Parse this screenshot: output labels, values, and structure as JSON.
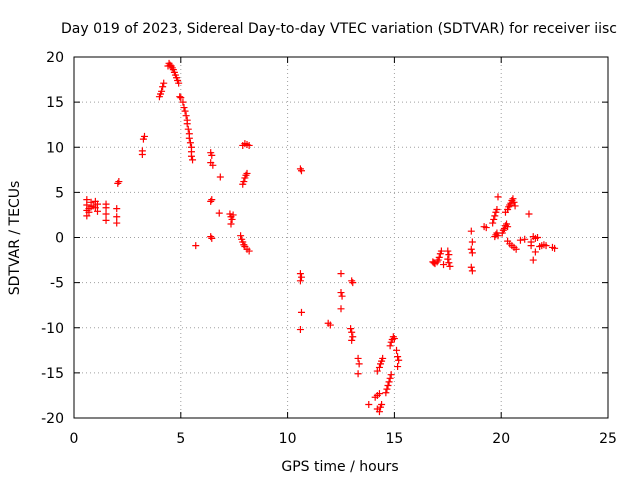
{
  "chart_data": {
    "type": "scatter",
    "title": "Day 019 of 2023, Sidereal Day-to-day VTEC variation (SDTVAR) for receiver iisc",
    "xlabel": "GPS time / hours",
    "ylabel": "SDTVAR / TECUs",
    "xlim": [
      0,
      25
    ],
    "ylim": [
      -20,
      20
    ],
    "xticks": [
      0,
      5,
      10,
      15,
      20,
      25
    ],
    "yticks": [
      -20,
      -15,
      -10,
      -5,
      0,
      5,
      10,
      15,
      20
    ],
    "grid": true,
    "marker": "+",
    "series_color": "#ff0000",
    "points": [
      [
        0.6,
        2.4
      ],
      [
        0.6,
        3.0
      ],
      [
        0.6,
        3.6
      ],
      [
        0.6,
        4.2
      ],
      [
        0.7,
        3.2
      ],
      [
        0.7,
        2.8
      ],
      [
        0.8,
        3.4
      ],
      [
        0.8,
        3.9
      ],
      [
        0.9,
        3.5
      ],
      [
        1.0,
        3.3
      ],
      [
        1.0,
        4.0
      ],
      [
        1.1,
        3.7
      ],
      [
        1.1,
        2.9
      ],
      [
        1.5,
        3.7
      ],
      [
        1.5,
        3.3
      ],
      [
        1.5,
        2.6
      ],
      [
        1.5,
        1.9
      ],
      [
        2.0,
        3.2
      ],
      [
        2.0,
        2.3
      ],
      [
        2.0,
        1.6
      ],
      [
        2.05,
        6.0
      ],
      [
        2.1,
        6.2
      ],
      [
        3.2,
        9.2
      ],
      [
        3.2,
        9.6
      ],
      [
        3.25,
        10.9
      ],
      [
        3.3,
        11.2
      ],
      [
        4.0,
        15.6
      ],
      [
        4.05,
        15.9
      ],
      [
        4.1,
        16.2
      ],
      [
        4.15,
        16.7
      ],
      [
        4.2,
        17.1
      ],
      [
        4.4,
        19.0
      ],
      [
        4.45,
        19.3
      ],
      [
        4.5,
        19.1
      ],
      [
        4.55,
        19.0
      ],
      [
        4.6,
        18.8
      ],
      [
        4.65,
        18.6
      ],
      [
        4.7,
        18.3
      ],
      [
        4.75,
        18.0
      ],
      [
        4.8,
        17.7
      ],
      [
        4.85,
        17.4
      ],
      [
        4.9,
        17.1
      ],
      [
        4.95,
        15.6
      ],
      [
        5.0,
        15.5
      ],
      [
        5.1,
        15.0
      ],
      [
        5.15,
        14.4
      ],
      [
        5.2,
        14.0
      ],
      [
        5.25,
        13.5
      ],
      [
        5.3,
        13.0
      ],
      [
        5.3,
        12.6
      ],
      [
        5.35,
        12.0
      ],
      [
        5.4,
        11.5
      ],
      [
        5.4,
        11.0
      ],
      [
        5.45,
        10.5
      ],
      [
        5.5,
        10.0
      ],
      [
        5.5,
        9.5
      ],
      [
        5.5,
        9.0
      ],
      [
        5.55,
        8.6
      ],
      [
        5.7,
        -0.9
      ],
      [
        6.4,
        9.4
      ],
      [
        6.45,
        9.1
      ],
      [
        6.4,
        8.3
      ],
      [
        6.5,
        8.0
      ],
      [
        6.4,
        4.0
      ],
      [
        6.45,
        4.2
      ],
      [
        6.4,
        0.1
      ],
      [
        6.45,
        -0.1
      ],
      [
        6.8,
        2.7
      ],
      [
        6.85,
        6.7
      ],
      [
        7.3,
        2.6
      ],
      [
        7.35,
        2.3
      ],
      [
        7.4,
        2.0
      ],
      [
        7.35,
        1.5
      ],
      [
        7.45,
        2.5
      ],
      [
        7.8,
        0.2
      ],
      [
        7.85,
        -0.2
      ],
      [
        7.9,
        -0.5
      ],
      [
        7.95,
        -0.8
      ],
      [
        8.0,
        -1.0
      ],
      [
        8.1,
        -1.3
      ],
      [
        8.2,
        -1.5
      ],
      [
        7.9,
        5.9
      ],
      [
        7.95,
        6.2
      ],
      [
        8.0,
        6.6
      ],
      [
        8.05,
        6.9
      ],
      [
        8.1,
        7.1
      ],
      [
        7.9,
        10.2
      ],
      [
        8.0,
        10.4
      ],
      [
        8.1,
        10.3
      ],
      [
        8.2,
        10.2
      ],
      [
        10.6,
        7.6
      ],
      [
        10.65,
        7.4
      ],
      [
        10.6,
        -4.0
      ],
      [
        10.65,
        -4.4
      ],
      [
        10.6,
        -4.8
      ],
      [
        10.65,
        -8.3
      ],
      [
        10.6,
        -10.2
      ],
      [
        11.9,
        -9.5
      ],
      [
        12.0,
        -9.7
      ],
      [
        12.5,
        -4.0
      ],
      [
        12.5,
        -6.1
      ],
      [
        12.55,
        -6.5
      ],
      [
        12.5,
        -7.9
      ],
      [
        13.0,
        -4.8
      ],
      [
        13.05,
        -5.0
      ],
      [
        12.95,
        -10.1
      ],
      [
        13.0,
        -10.5
      ],
      [
        13.05,
        -11.0
      ],
      [
        13.0,
        -11.4
      ],
      [
        13.3,
        -13.4
      ],
      [
        13.35,
        -14.0
      ],
      [
        13.3,
        -15.1
      ],
      [
        13.8,
        -18.5
      ],
      [
        14.1,
        -17.7
      ],
      [
        14.2,
        -17.5
      ],
      [
        14.3,
        -17.3
      ],
      [
        14.2,
        -19.0
      ],
      [
        14.3,
        -19.3
      ],
      [
        14.35,
        -18.8
      ],
      [
        14.4,
        -18.5
      ],
      [
        14.2,
        -14.8
      ],
      [
        14.3,
        -14.4
      ],
      [
        14.35,
        -14.0
      ],
      [
        14.4,
        -13.7
      ],
      [
        14.45,
        -13.4
      ],
      [
        14.6,
        -17.2
      ],
      [
        14.65,
        -16.8
      ],
      [
        14.7,
        -16.4
      ],
      [
        14.75,
        -16.0
      ],
      [
        14.8,
        -15.6
      ],
      [
        14.85,
        -15.2
      ],
      [
        14.8,
        -12.0
      ],
      [
        14.85,
        -11.6
      ],
      [
        14.9,
        -11.3
      ],
      [
        14.95,
        -11.0
      ],
      [
        15.0,
        -11.2
      ],
      [
        15.1,
        -12.5
      ],
      [
        15.15,
        -13.2
      ],
      [
        15.2,
        -13.6
      ],
      [
        15.15,
        -14.3
      ],
      [
        16.8,
        -2.7
      ],
      [
        16.85,
        -2.8
      ],
      [
        16.9,
        -2.9
      ],
      [
        17.0,
        -2.7
      ],
      [
        17.05,
        -2.5
      ],
      [
        17.1,
        -2.2
      ],
      [
        17.15,
        -1.8
      ],
      [
        17.2,
        -1.5
      ],
      [
        17.3,
        -3.0
      ],
      [
        17.5,
        -1.5
      ],
      [
        17.55,
        -1.9
      ],
      [
        17.5,
        -2.4
      ],
      [
        17.55,
        -2.8
      ],
      [
        17.6,
        -3.2
      ],
      [
        18.6,
        0.7
      ],
      [
        18.65,
        -0.5
      ],
      [
        18.6,
        -1.3
      ],
      [
        18.65,
        -1.7
      ],
      [
        18.6,
        -3.3
      ],
      [
        18.65,
        -3.7
      ],
      [
        19.2,
        1.2
      ],
      [
        19.3,
        1.1
      ],
      [
        19.7,
        0.1
      ],
      [
        19.75,
        0.3
      ],
      [
        19.8,
        0.5
      ],
      [
        19.85,
        0.2
      ],
      [
        19.6,
        1.6
      ],
      [
        19.65,
        2.0
      ],
      [
        19.7,
        2.4
      ],
      [
        19.75,
        2.8
      ],
      [
        19.8,
        3.1
      ],
      [
        19.85,
        4.5
      ],
      [
        20.05,
        0.5
      ],
      [
        20.1,
        0.8
      ],
      [
        20.15,
        1.0
      ],
      [
        20.2,
        1.3
      ],
      [
        20.25,
        1.5
      ],
      [
        20.3,
        1.2
      ],
      [
        20.2,
        2.8
      ],
      [
        20.3,
        3.1
      ],
      [
        20.35,
        3.4
      ],
      [
        20.4,
        3.6
      ],
      [
        20.45,
        3.8
      ],
      [
        20.5,
        4.1
      ],
      [
        20.55,
        4.3
      ],
      [
        20.6,
        3.9
      ],
      [
        20.65,
        3.5
      ],
      [
        20.3,
        -0.4
      ],
      [
        20.4,
        -0.7
      ],
      [
        20.5,
        -0.9
      ],
      [
        20.6,
        -1.1
      ],
      [
        20.7,
        -1.3
      ],
      [
        20.9,
        -0.3
      ],
      [
        21.1,
        -0.2
      ],
      [
        21.3,
        2.6
      ],
      [
        21.4,
        -0.5
      ],
      [
        21.4,
        -0.9
      ],
      [
        21.5,
        -2.5
      ],
      [
        21.6,
        -1.6
      ],
      [
        21.5,
        0.1
      ],
      [
        21.6,
        -0.1
      ],
      [
        21.7,
        0.0
      ],
      [
        21.8,
        -1.0
      ],
      [
        21.9,
        -0.9
      ],
      [
        22.0,
        -0.8
      ],
      [
        22.1,
        -0.9
      ],
      [
        22.4,
        -1.1
      ],
      [
        22.5,
        -1.2
      ]
    ]
  }
}
